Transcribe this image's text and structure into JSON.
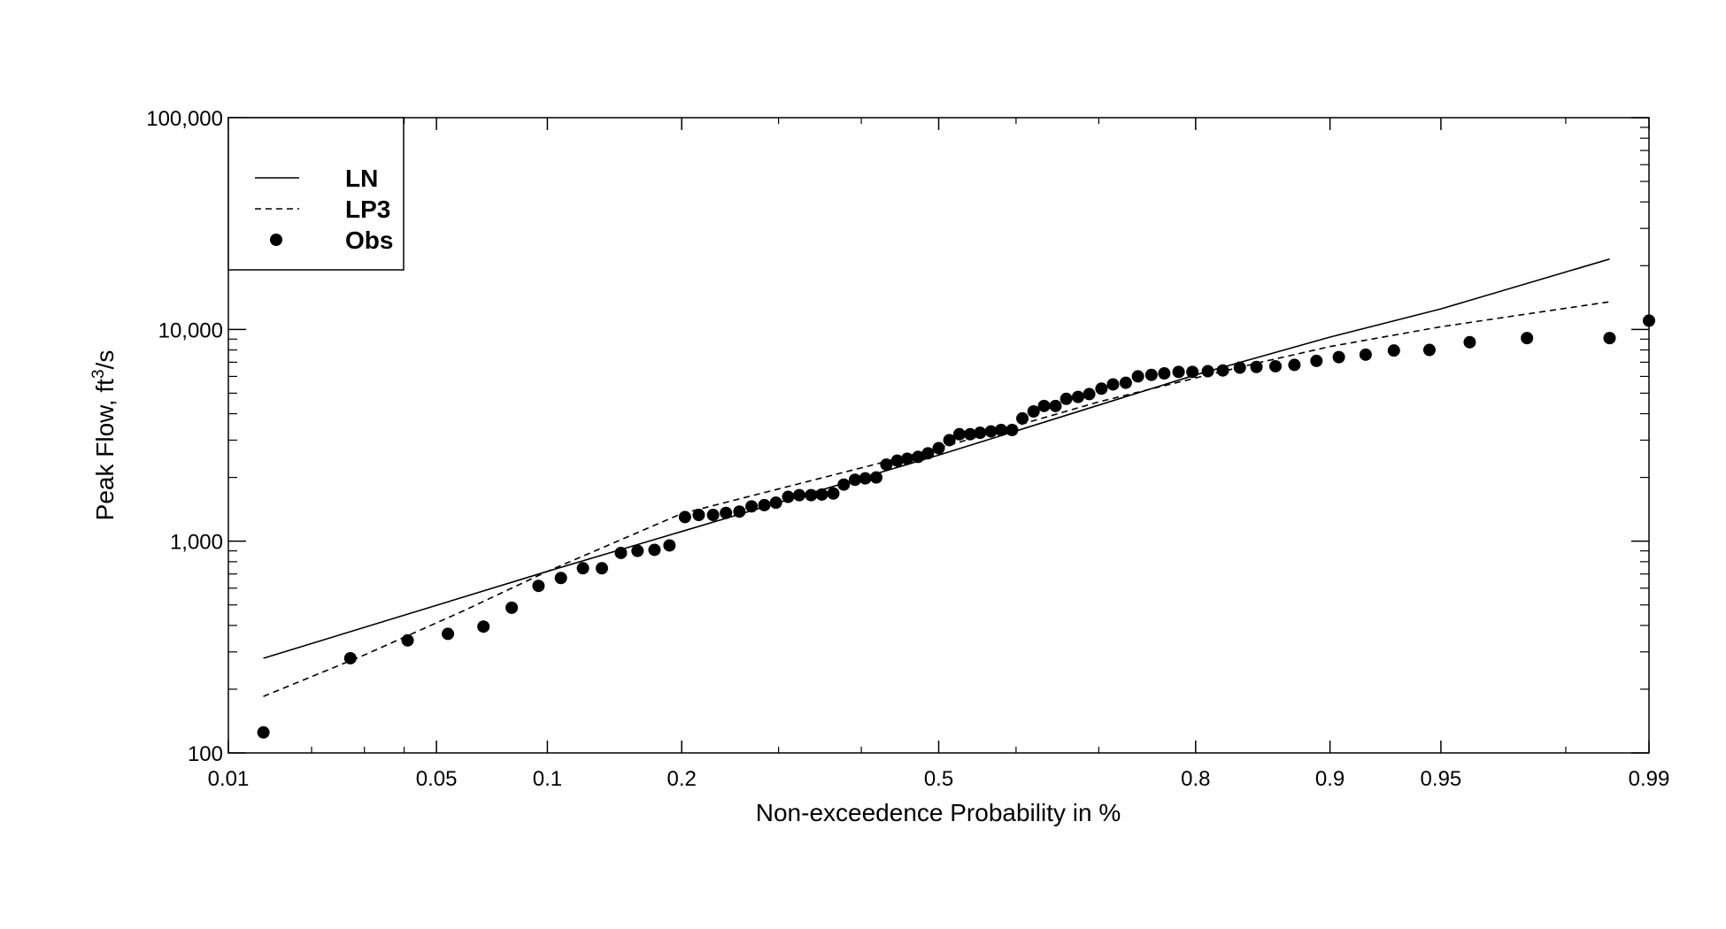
{
  "chart_data": {
    "type": "scatter",
    "xlabel": "Non-exceedence Probability in %",
    "ylabel": {
      "main": "Peak Flow,  ft",
      "sup": "3",
      "tail": "/s"
    },
    "x_scale": "normal-probability",
    "y_scale": "log",
    "xlim": [
      0.01,
      0.99
    ],
    "ylim": [
      100,
      100000
    ],
    "grid": false,
    "legend_position": "top-left",
    "x_ticks": [
      0.01,
      0.05,
      0.1,
      0.2,
      0.5,
      0.8,
      0.9,
      0.95,
      0.99
    ],
    "x_tick_labels": [
      "0.01",
      "0.05",
      "0.1",
      "0.2",
      "0.5",
      "0.8",
      "0.9",
      "0.95",
      "0.99"
    ],
    "y_ticks": [
      100,
      1000,
      10000,
      100000
    ],
    "y_tick_labels": [
      "100",
      "1,000",
      "10,000",
      "100,000"
    ],
    "legend": [
      {
        "label": "LN",
        "style": "solid-line"
      },
      {
        "label": "LP3",
        "style": "dashed-line"
      },
      {
        "label": "Obs",
        "style": "filled-circle"
      }
    ],
    "series": [
      {
        "name": "LN",
        "style": "solid",
        "points": [
          [
            0.0135,
            280
          ],
          [
            0.1,
            720
          ],
          [
            0.5,
            2550
          ],
          [
            0.8,
            6100
          ],
          [
            0.9,
            9200
          ],
          [
            0.95,
            12500
          ],
          [
            0.986,
            21500
          ]
        ]
      },
      {
        "name": "LP3",
        "style": "dashed",
        "points": [
          [
            0.0135,
            185
          ],
          [
            0.03,
            290
          ],
          [
            0.06,
            470
          ],
          [
            0.1,
            720
          ],
          [
            0.2,
            1350
          ],
          [
            0.5,
            2750
          ],
          [
            0.7,
            4550
          ],
          [
            0.8,
            5900
          ],
          [
            0.85,
            6900
          ],
          [
            0.9,
            8300
          ],
          [
            0.95,
            10300
          ],
          [
            0.986,
            13500
          ]
        ]
      },
      {
        "name": "Obs",
        "style": "points",
        "points": [
          [
            0.0135,
            125
          ],
          [
            0.027,
            280
          ],
          [
            0.041,
            340
          ],
          [
            0.054,
            365
          ],
          [
            0.068,
            395
          ],
          [
            0.081,
            485
          ],
          [
            0.095,
            615
          ],
          [
            0.108,
            670
          ],
          [
            0.122,
            745
          ],
          [
            0.135,
            745
          ],
          [
            0.149,
            880
          ],
          [
            0.162,
            900
          ],
          [
            0.176,
            910
          ],
          [
            0.189,
            955
          ],
          [
            0.203,
            1300
          ],
          [
            0.216,
            1330
          ],
          [
            0.23,
            1330
          ],
          [
            0.243,
            1360
          ],
          [
            0.257,
            1380
          ],
          [
            0.27,
            1460
          ],
          [
            0.284,
            1480
          ],
          [
            0.297,
            1520
          ],
          [
            0.311,
            1620
          ],
          [
            0.324,
            1650
          ],
          [
            0.338,
            1650
          ],
          [
            0.351,
            1660
          ],
          [
            0.365,
            1680
          ],
          [
            0.378,
            1850
          ],
          [
            0.392,
            1950
          ],
          [
            0.405,
            1980
          ],
          [
            0.419,
            2000
          ],
          [
            0.432,
            2300
          ],
          [
            0.446,
            2400
          ],
          [
            0.459,
            2450
          ],
          [
            0.473,
            2500
          ],
          [
            0.486,
            2600
          ],
          [
            0.5,
            2750
          ],
          [
            0.514,
            3000
          ],
          [
            0.527,
            3200
          ],
          [
            0.541,
            3200
          ],
          [
            0.554,
            3250
          ],
          [
            0.568,
            3300
          ],
          [
            0.581,
            3350
          ],
          [
            0.595,
            3350
          ],
          [
            0.608,
            3800
          ],
          [
            0.622,
            4100
          ],
          [
            0.635,
            4350
          ],
          [
            0.649,
            4350
          ],
          [
            0.662,
            4700
          ],
          [
            0.676,
            4800
          ],
          [
            0.689,
            4950
          ],
          [
            0.703,
            5250
          ],
          [
            0.716,
            5500
          ],
          [
            0.73,
            5600
          ],
          [
            0.743,
            6000
          ],
          [
            0.757,
            6100
          ],
          [
            0.77,
            6200
          ],
          [
            0.784,
            6300
          ],
          [
            0.797,
            6300
          ],
          [
            0.811,
            6350
          ],
          [
            0.824,
            6400
          ],
          [
            0.838,
            6600
          ],
          [
            0.851,
            6650
          ],
          [
            0.865,
            6700
          ],
          [
            0.878,
            6800
          ],
          [
            0.892,
            7100
          ],
          [
            0.905,
            7400
          ],
          [
            0.919,
            7600
          ],
          [
            0.932,
            7950
          ],
          [
            0.946,
            8000
          ],
          [
            0.959,
            8700
          ],
          [
            0.973,
            9100
          ],
          [
            0.986,
            9100
          ],
          [
            0.99,
            11000
          ]
        ]
      }
    ]
  }
}
